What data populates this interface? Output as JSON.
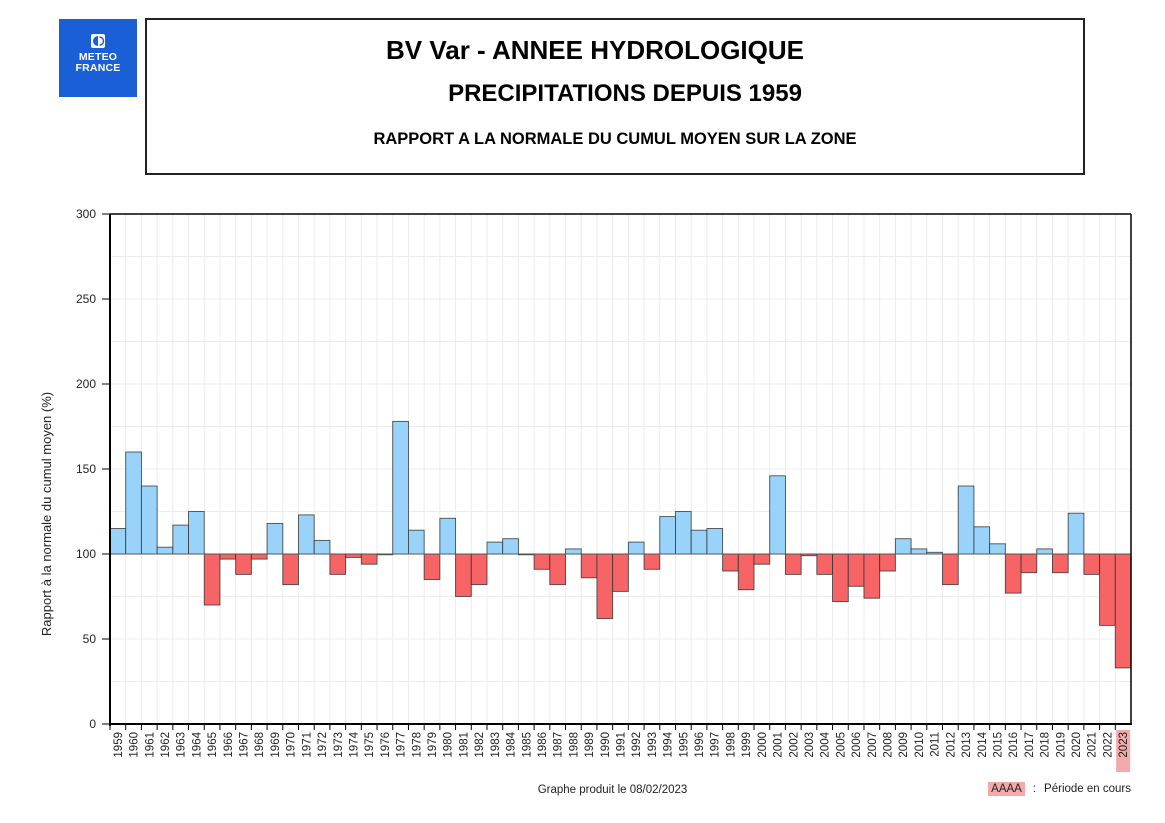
{
  "logo": {
    "line1": "METEO",
    "line2": "FRANCE",
    "color": "#1a5fd6"
  },
  "header": {
    "title_line1": "BV Var - ANNEE HYDROLOGIQUE",
    "title_line2": "PRECIPITATIONS DEPUIS 1959",
    "subtitle": "RAPPORT A LA NORMALE DU CUMUL MOYEN SUR LA ZONE"
  },
  "footer": {
    "produced": "Graphe produit le 08/02/2023",
    "legend_swatch_label": "AAAA",
    "legend_separator": ":",
    "legend_text": "Période en cours"
  },
  "colors": {
    "above": "#99d3fa",
    "below": "#f66466",
    "current_highlight": "#f4aaaa",
    "bar_stroke": "#333333",
    "grid": "#ececec"
  },
  "chart_data": {
    "type": "bar",
    "title": "BV Var - ANNEE HYDROLOGIQUE PRECIPITATIONS DEPUIS 1959",
    "subtitle": "RAPPORT A LA NORMALE DU CUMUL MOYEN SUR LA ZONE",
    "xlabel": "",
    "ylabel": "Rapport à la normale du cumul moyen (%)",
    "ylim": [
      0,
      300
    ],
    "yticks": [
      0,
      50,
      100,
      150,
      200,
      250,
      300
    ],
    "baseline": 100,
    "grid": true,
    "current_period": "2023",
    "categories": [
      "1959",
      "1960",
      "1961",
      "1962",
      "1963",
      "1964",
      "1965",
      "1966",
      "1967",
      "1968",
      "1969",
      "1970",
      "1971",
      "1972",
      "1973",
      "1974",
      "1975",
      "1976",
      "1977",
      "1978",
      "1979",
      "1980",
      "1981",
      "1982",
      "1983",
      "1984",
      "1985",
      "1986",
      "1987",
      "1988",
      "1989",
      "1990",
      "1991",
      "1992",
      "1993",
      "1994",
      "1995",
      "1996",
      "1997",
      "1998",
      "1999",
      "2000",
      "2001",
      "2002",
      "2003",
      "2004",
      "2005",
      "2006",
      "2007",
      "2008",
      "2009",
      "2010",
      "2011",
      "2012",
      "2013",
      "2014",
      "2015",
      "2016",
      "2017",
      "2018",
      "2019",
      "2020",
      "2021",
      "2022",
      "2023"
    ],
    "values": [
      115,
      160,
      140,
      104,
      117,
      125,
      70,
      97,
      88,
      97,
      118,
      82,
      123,
      108,
      88,
      98,
      94,
      100,
      178,
      114,
      85,
      121,
      75,
      82,
      107,
      109,
      100,
      91,
      82,
      103,
      86,
      62,
      78,
      107,
      91,
      122,
      125,
      114,
      115,
      90,
      79,
      94,
      146,
      88,
      99,
      88,
      72,
      81,
      74,
      90,
      109,
      103,
      101,
      82,
      140,
      116,
      106,
      77,
      89,
      103,
      89,
      124,
      88,
      58,
      33
    ]
  }
}
